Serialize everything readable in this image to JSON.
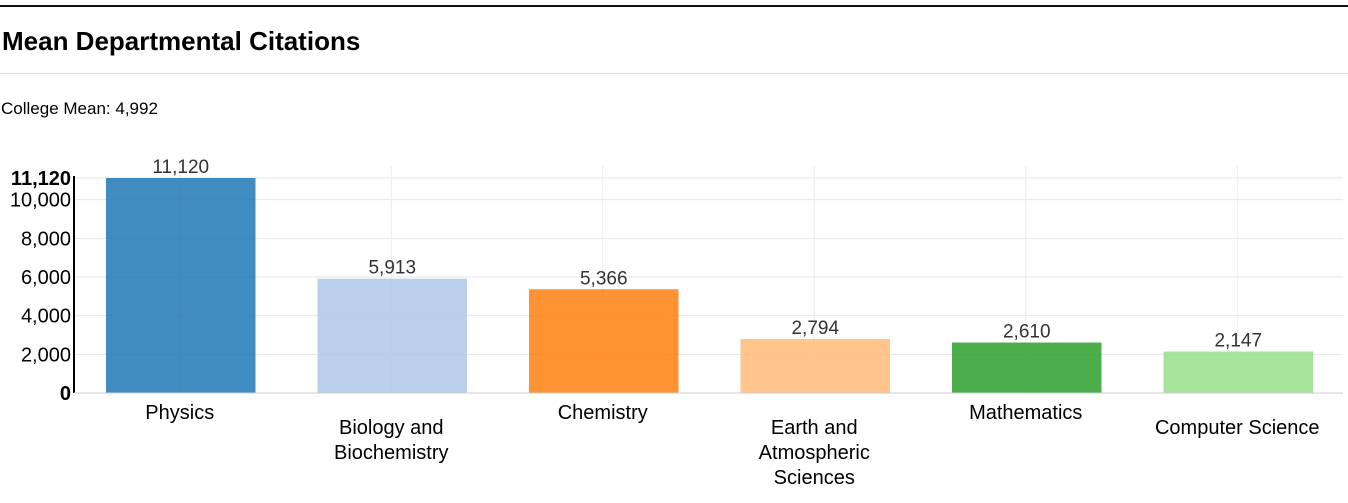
{
  "page": {
    "title": "Mean Departmental Citations",
    "college_mean_label": "College Mean:",
    "college_mean_value": "4,992"
  },
  "chart_data": {
    "type": "bar",
    "categories": [
      "Physics",
      "Biology and Biochemistry",
      "Chemistry",
      "Earth and Atmospheric Sciences",
      "Mathematics",
      "Computer Science"
    ],
    "category_label_lines": [
      [
        "Physics"
      ],
      [
        "Biology and",
        "Biochemistry"
      ],
      [
        "Chemistry"
      ],
      [
        "Earth and",
        "Atmospheric",
        "Sciences"
      ],
      [
        "Mathematics"
      ],
      [
        "Computer Science"
      ]
    ],
    "values": [
      11120,
      5913,
      5366,
      2794,
      2610,
      2147
    ],
    "value_labels": [
      "11,120",
      "5,913",
      "5,366",
      "2,794",
      "2,610",
      "2,147"
    ],
    "colors": [
      "#1f77b4",
      "#aec7e8",
      "#ff7f0e",
      "#ffbb78",
      "#2ca02c",
      "#98df8a"
    ],
    "ylim": [
      0,
      11120
    ],
    "yticks": [
      0,
      2000,
      4000,
      6000,
      8000,
      10000,
      11120
    ],
    "ytick_labels": [
      "0",
      "2,000",
      "4,000",
      "6,000",
      "8,000",
      "10,000",
      "11,120"
    ],
    "bold_ticks": [
      "0",
      "11,120"
    ],
    "grid": true,
    "title": "Mean Departmental Citations",
    "xlabel": "",
    "ylabel": ""
  }
}
